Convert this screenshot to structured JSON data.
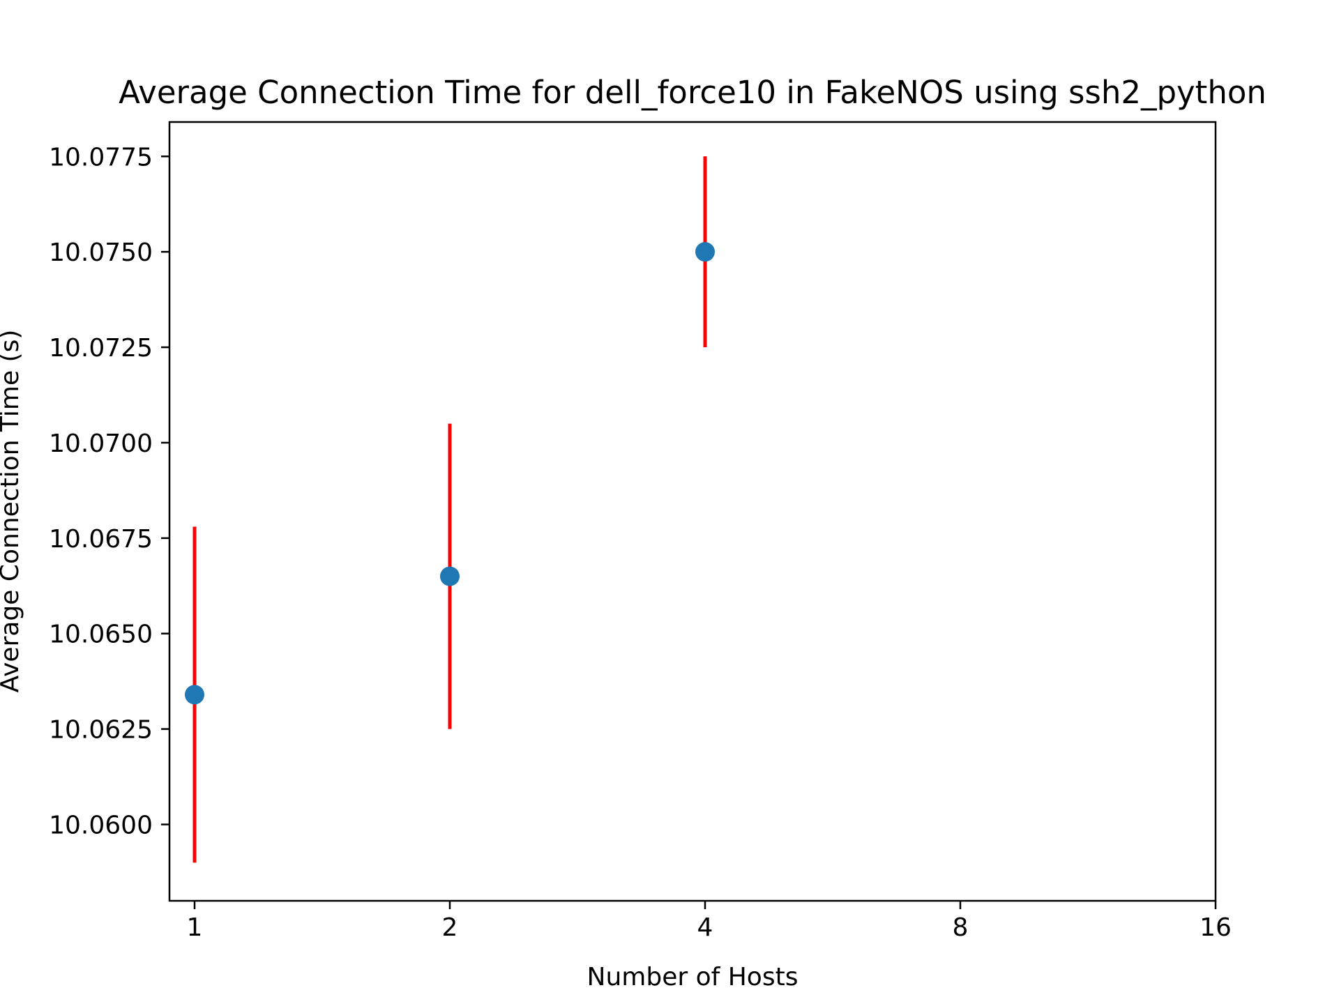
{
  "chart_data": {
    "type": "scatter",
    "title": "Average Connection Time for dell_force10 in FakeNOS using ssh2_python",
    "xlabel": "Number of Hosts",
    "ylabel": "Average Connection Time (s)",
    "x_scale": "log2",
    "x_ticks": [
      "1",
      "2",
      "4",
      "8",
      "16"
    ],
    "xlim": [
      1,
      16
    ],
    "ylim": [
      10.058,
      10.0784
    ],
    "y_ticks": [
      "10.0600",
      "10.0625",
      "10.0650",
      "10.0675",
      "10.0700",
      "10.0725",
      "10.0750",
      "10.0775"
    ],
    "grid": false,
    "legend": "none",
    "series": [
      {
        "x": [
          1,
          2,
          4
        ],
        "y": [
          10.0634,
          10.0665,
          10.075
        ],
        "yerr": [
          0.0044,
          0.004,
          0.0025
        ]
      }
    ],
    "colors": {
      "marker": "#1f77b4",
      "errorbar": "#ff0000",
      "axes": "#000000"
    }
  }
}
